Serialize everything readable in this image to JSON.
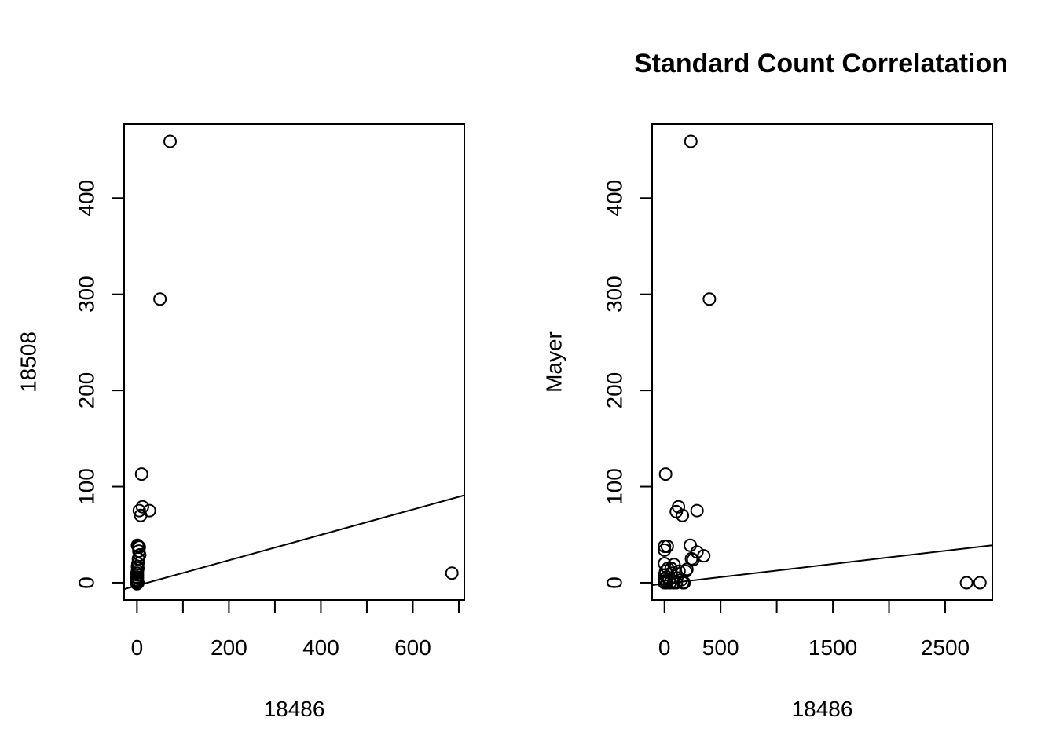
{
  "figure_title": "Standard Count Correlatation",
  "chart_data": [
    {
      "type": "scatter",
      "title": "",
      "xlabel": "18486",
      "ylabel": "18508",
      "xlim": [
        -28,
        712
      ],
      "ylim": [
        -18,
        477
      ],
      "xticks": [
        0,
        100,
        200,
        300,
        400,
        500,
        600,
        700
      ],
      "xtick_labels": [
        "0",
        "",
        "200",
        "",
        "400",
        "",
        "600",
        ""
      ],
      "yticks": [
        0,
        100,
        200,
        300,
        400
      ],
      "ytick_labels": [
        "0",
        "100",
        "200",
        "300",
        "400"
      ],
      "grid": false,
      "regression_line": {
        "intercept": -3.0,
        "slope": 0.132
      },
      "points": [
        {
          "x": 72,
          "y": 459
        },
        {
          "x": 50,
          "y": 295
        },
        {
          "x": 10,
          "y": 113
        },
        {
          "x": 12,
          "y": 79
        },
        {
          "x": 27,
          "y": 75
        },
        {
          "x": 5,
          "y": 75
        },
        {
          "x": 8,
          "y": 70
        },
        {
          "x": 685,
          "y": 10
        },
        {
          "x": 1,
          "y": 39
        },
        {
          "x": 3,
          "y": 38
        },
        {
          "x": 5,
          "y": 37
        },
        {
          "x": 4,
          "y": 33
        },
        {
          "x": 6,
          "y": 29
        },
        {
          "x": 3,
          "y": 25
        },
        {
          "x": 2,
          "y": 20
        },
        {
          "x": 1,
          "y": 17
        },
        {
          "x": 2,
          "y": 15
        },
        {
          "x": 1,
          "y": 12
        },
        {
          "x": 0,
          "y": 10
        },
        {
          "x": 1,
          "y": 8
        },
        {
          "x": 0,
          "y": 6
        },
        {
          "x": 1,
          "y": 5
        },
        {
          "x": 0,
          "y": 3
        },
        {
          "x": 0,
          "y": 2
        },
        {
          "x": 1,
          "y": 1
        },
        {
          "x": 0,
          "y": 0
        },
        {
          "x": 2,
          "y": 0
        },
        {
          "x": 0,
          "y": -1
        }
      ]
    },
    {
      "type": "scatter",
      "title": "",
      "xlabel": "18486",
      "ylabel": "Mayer",
      "xlim": [
        -110,
        2920
      ],
      "ylim": [
        -18,
        477
      ],
      "xticks": [
        0,
        500,
        1000,
        1500,
        2000,
        2500
      ],
      "xtick_labels": [
        "0",
        "500",
        "",
        "1500",
        "",
        "2500"
      ],
      "yticks": [
        0,
        100,
        200,
        300,
        400
      ],
      "ytick_labels": [
        "0",
        "100",
        "200",
        "300",
        "400"
      ],
      "grid": false,
      "regression_line": {
        "intercept": -1.0,
        "slope": 0.0137
      },
      "points": [
        {
          "x": 235,
          "y": 459
        },
        {
          "x": 400,
          "y": 295
        },
        {
          "x": 10,
          "y": 113
        },
        {
          "x": 125,
          "y": 79
        },
        {
          "x": 290,
          "y": 75
        },
        {
          "x": 105,
          "y": 74
        },
        {
          "x": 160,
          "y": 70
        },
        {
          "x": 2690,
          "y": 0
        },
        {
          "x": 2810,
          "y": 0
        },
        {
          "x": 0,
          "y": 38
        },
        {
          "x": 25,
          "y": 38
        },
        {
          "x": 230,
          "y": 39
        },
        {
          "x": 0,
          "y": 34
        },
        {
          "x": 290,
          "y": 32
        },
        {
          "x": 350,
          "y": 28
        },
        {
          "x": 240,
          "y": 25
        },
        {
          "x": 255,
          "y": 24
        },
        {
          "x": 0,
          "y": 20
        },
        {
          "x": 85,
          "y": 19
        },
        {
          "x": 30,
          "y": 15
        },
        {
          "x": 60,
          "y": 15
        },
        {
          "x": 200,
          "y": 14
        },
        {
          "x": 10,
          "y": 12
        },
        {
          "x": 130,
          "y": 12
        },
        {
          "x": 190,
          "y": 12
        },
        {
          "x": 60,
          "y": 10
        },
        {
          "x": 0,
          "y": 8
        },
        {
          "x": 20,
          "y": 6
        },
        {
          "x": 110,
          "y": 5
        },
        {
          "x": 0,
          "y": 4
        },
        {
          "x": 40,
          "y": 3
        },
        {
          "x": 150,
          "y": 3
        },
        {
          "x": 5,
          "y": 2
        },
        {
          "x": 0,
          "y": 0
        },
        {
          "x": 20,
          "y": 0
        },
        {
          "x": 50,
          "y": 0
        },
        {
          "x": 80,
          "y": 0
        },
        {
          "x": 105,
          "y": 0
        },
        {
          "x": 165,
          "y": 0
        },
        {
          "x": 175,
          "y": 0
        }
      ]
    }
  ]
}
